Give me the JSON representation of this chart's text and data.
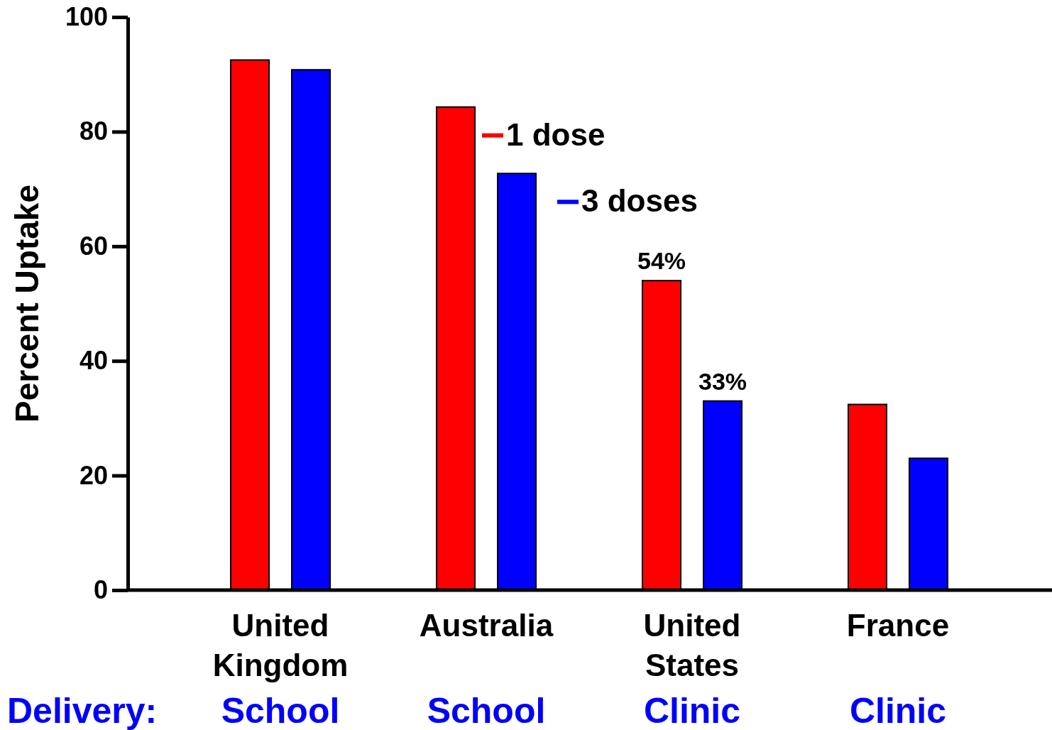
{
  "chart_data": {
    "type": "bar",
    "ylabel": "Percent Uptake",
    "categories": [
      "United Kingdom",
      "Australia",
      "United States",
      "France"
    ],
    "series": [
      {
        "name": "1 dose",
        "color": "#ff0000",
        "values": [
          92.5,
          84.3,
          54,
          32.4
        ],
        "value_labels": [
          null,
          null,
          "54%",
          null
        ]
      },
      {
        "name": "3 doses",
        "color": "#0000ff",
        "values": [
          90.8,
          72.7,
          33,
          23
        ],
        "value_labels": [
          null,
          null,
          "33%",
          null
        ]
      }
    ],
    "ylim": [
      0,
      100
    ],
    "yticks": [
      0,
      20,
      40,
      60,
      80,
      100
    ],
    "grid": false,
    "legend": "top",
    "annotations": [
      "Delivery:",
      "School",
      "School",
      "Clinic",
      "Clinic"
    ]
  }
}
